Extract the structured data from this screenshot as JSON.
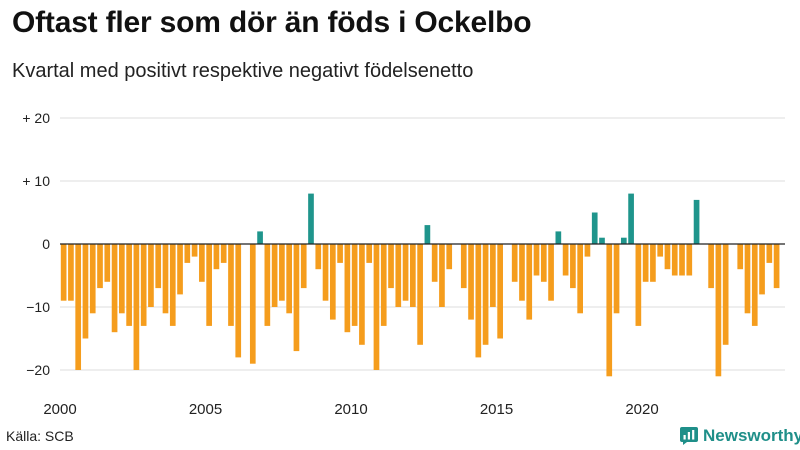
{
  "chart_data": {
    "type": "bar",
    "title": "Oftast fler som dör än föds i Ockelbo",
    "subtitle": "Kvartal med positivt respektive negativt födelsenetto",
    "source": "Källa: SCB",
    "brand": "Newsworthy",
    "x_ticks": [
      "2000",
      "2005",
      "2010",
      "2015",
      "2020"
    ],
    "y_ticks": [
      {
        "value": 20,
        "label": "+ 20"
      },
      {
        "value": 10,
        "label": "+ 10"
      },
      {
        "value": 0,
        "label": "0"
      },
      {
        "value": -10,
        "label": "−10"
      },
      {
        "value": -20,
        "label": "−20"
      }
    ],
    "ylim": [
      -22,
      20
    ],
    "start_year": 2000,
    "colors": {
      "positive": "#1f958c",
      "negative": "#f59d1d",
      "grid": "#dcdcdc",
      "zero": "#222222",
      "brand": "#1f8f89"
    },
    "values": [
      -9,
      -9,
      -20,
      -15,
      -11,
      -7,
      -6,
      -14,
      -11,
      -13,
      -20,
      -13,
      -10,
      -7,
      -11,
      -13,
      -8,
      -3,
      -2,
      -6,
      -13,
      -4,
      -3,
      -13,
      -18,
      0,
      -19,
      2,
      -13,
      -10,
      -9,
      -11,
      -17,
      -7,
      8,
      -4,
      -9,
      -12,
      -3,
      -14,
      -13,
      -16,
      -3,
      -20,
      -13,
      -7,
      -10,
      -9,
      -10,
      -16,
      3,
      -6,
      -10,
      -4,
      0,
      -7,
      -12,
      -18,
      -16,
      -10,
      -15,
      0,
      -6,
      -9,
      -12,
      -5,
      -6,
      -9,
      2,
      -5,
      -7,
      -11,
      -2,
      5,
      1,
      -21,
      -11,
      1,
      8,
      -13,
      -6,
      -6,
      -2,
      -4,
      -5,
      -5,
      -5,
      7,
      0,
      -7,
      -21,
      -16,
      0,
      -4,
      -11,
      -13,
      -8,
      -3,
      -7
    ]
  }
}
